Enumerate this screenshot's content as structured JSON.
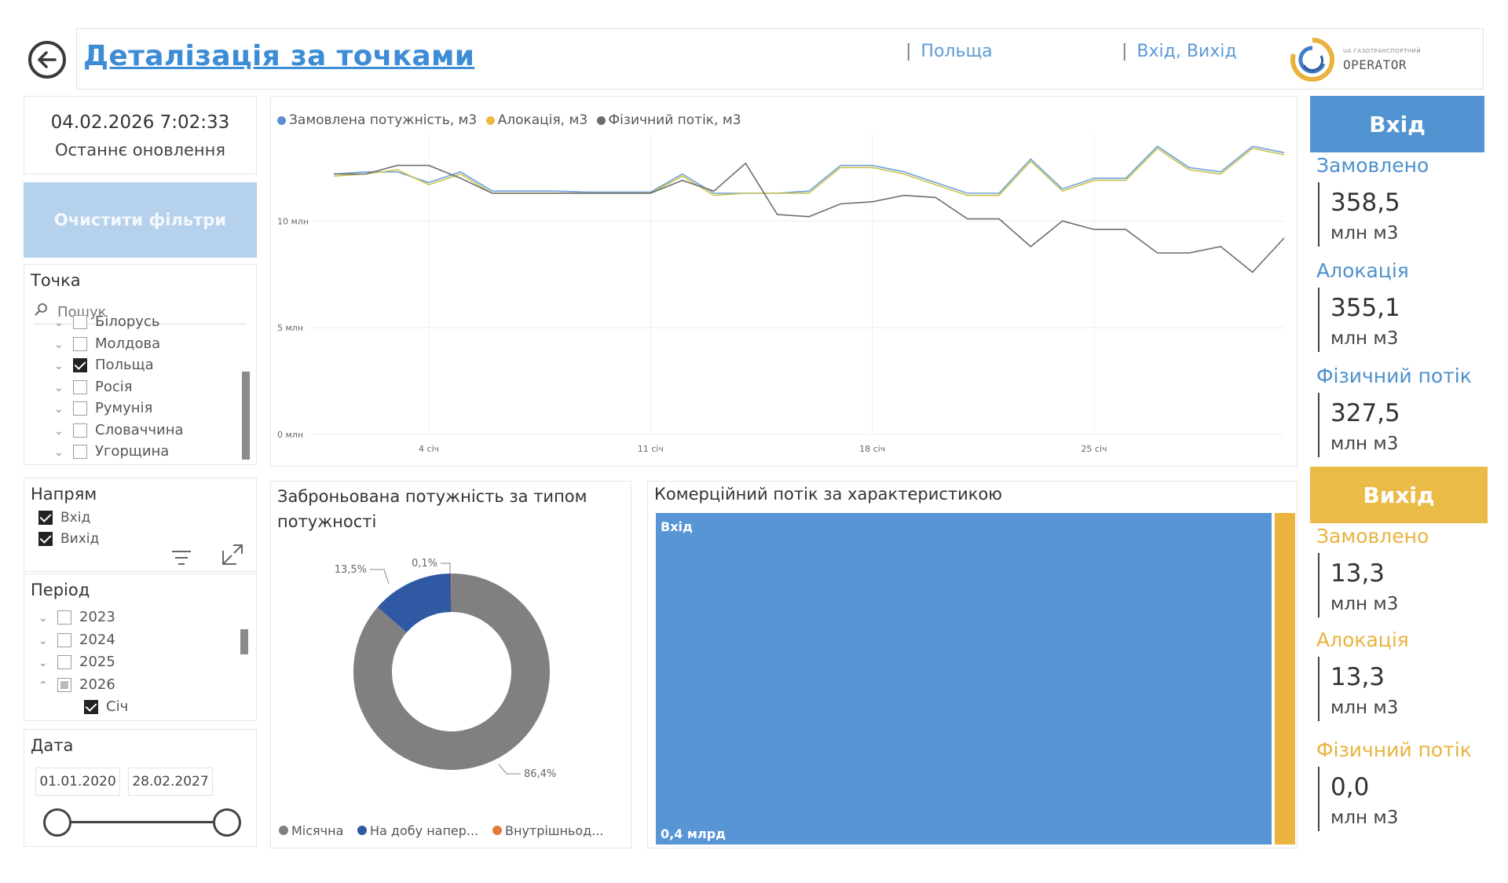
{
  "header": {
    "title": "Деталізація за точками",
    "filter_country": "Польща",
    "filter_direction": "Вхід, Вихід",
    "logo_text_small": "UA ГАЗОТРАНСПОРТНИЙ",
    "logo_text": "OPERATOR"
  },
  "refresh": {
    "datetime": "04.02.2026 7:02:33",
    "label": "Останнє оновлення"
  },
  "clear_filters_label": "Очистити фільтри",
  "tochka": {
    "title": "Точка",
    "search_placeholder": "Пошук",
    "items": [
      {
        "label": "Білорусь",
        "checked": false
      },
      {
        "label": "Молдова",
        "checked": false
      },
      {
        "label": "Польща",
        "checked": true
      },
      {
        "label": "Росія",
        "checked": false
      },
      {
        "label": "Румунія",
        "checked": false
      },
      {
        "label": "Словаччина",
        "checked": false
      },
      {
        "label": "Угорщина",
        "checked": false
      }
    ]
  },
  "napriam": {
    "title": "Напрям",
    "items": [
      {
        "label": "Вхід",
        "checked": true
      },
      {
        "label": "Вихід",
        "checked": true
      }
    ]
  },
  "period": {
    "title": "Період",
    "items": [
      {
        "label": "2023",
        "state": "unchecked",
        "expanded": false
      },
      {
        "label": "2024",
        "state": "unchecked",
        "expanded": false
      },
      {
        "label": "2025",
        "state": "unchecked",
        "expanded": false
      },
      {
        "label": "2026",
        "state": "partial",
        "expanded": true
      },
      {
        "label": "Січ",
        "state": "checked",
        "child": true
      }
    ]
  },
  "date_slicer": {
    "title": "Дата",
    "from": "01.01.2020",
    "to": "28.02.2027"
  },
  "line_chart": {
    "legend": [
      {
        "label": "Замовлена потужність, м3",
        "color": "#5b8fd0"
      },
      {
        "label": "Алокація, м3",
        "color": "#e8b93f"
      },
      {
        "label": "Фізичний потік, м3",
        "color": "#6b6b6b"
      }
    ]
  },
  "chart_data": [
    {
      "type": "line",
      "x_ticks": [
        "4 січ",
        "11 січ",
        "18 січ",
        "25 січ"
      ],
      "y_ticks": [
        "0 млн",
        "5 млн",
        "10 млн"
      ],
      "ylim": [
        0,
        14.5
      ],
      "x": [
        1,
        2,
        3,
        4,
        5,
        6,
        7,
        8,
        9,
        10,
        11,
        12,
        13,
        14,
        15,
        16,
        17,
        18,
        19,
        20,
        21,
        22,
        23,
        24,
        25,
        26,
        27,
        28,
        29,
        30,
        31
      ],
      "series": [
        {
          "name": "Замовлена потужність, м3",
          "color": "#6fa0d8",
          "values": [
            12.2,
            12.3,
            12.3,
            11.8,
            12.3,
            11.4,
            11.4,
            11.4,
            11.35,
            11.35,
            11.35,
            12.2,
            11.3,
            11.3,
            11.3,
            11.4,
            12.6,
            12.6,
            12.3,
            11.8,
            11.3,
            11.3,
            12.9,
            11.5,
            12.0,
            12.0,
            13.5,
            12.5,
            12.3,
            13.5,
            13.2
          ]
        },
        {
          "name": "Алокація, м3",
          "color": "#c9c24f",
          "values": [
            12.1,
            12.2,
            12.4,
            11.7,
            12.2,
            11.3,
            11.3,
            11.3,
            11.3,
            11.3,
            11.3,
            12.1,
            11.2,
            11.3,
            11.3,
            11.3,
            12.5,
            12.5,
            12.2,
            11.7,
            11.2,
            11.2,
            12.8,
            11.4,
            11.9,
            11.9,
            13.4,
            12.4,
            12.2,
            13.4,
            13.1
          ]
        },
        {
          "name": "Фізичний потік, м3",
          "color": "#6e6e6e",
          "values": [
            12.2,
            12.2,
            12.6,
            12.6,
            12.0,
            11.3,
            11.3,
            11.3,
            11.3,
            11.3,
            11.3,
            11.9,
            11.4,
            12.7,
            10.3,
            10.2,
            10.8,
            10.9,
            11.2,
            11.1,
            10.1,
            10.1,
            8.8,
            10.0,
            9.6,
            9.6,
            8.5,
            8.5,
            8.8,
            7.6,
            9.2
          ]
        }
      ]
    },
    {
      "type": "pie",
      "title": "Заброньована потужність за типом потужності",
      "categories": [
        "Місячна",
        "На добу напер...",
        "Внутрішньод..."
      ],
      "values": [
        86.4,
        13.5,
        0.1
      ],
      "labels": [
        "86,4%",
        "13,5%",
        "0,1%"
      ],
      "colors": [
        "#808080",
        "#2f5aa3",
        "#e07b39"
      ]
    },
    {
      "type": "heatmap",
      "title": "Комерційний потік за характеристикою",
      "categories": [
        "Вхід",
        "Вихід"
      ],
      "values": [
        0.4,
        0.013
      ],
      "value_label": "0,4 млрд",
      "colors": [
        "#5795d5",
        "#ebb33f"
      ]
    }
  ],
  "kpi": {
    "in": {
      "header": "Вхід",
      "ordered_label": "Замовлено",
      "ordered_value": "358,5",
      "alloc_label": "Алокація",
      "alloc_value": "355,1",
      "phys_label": "Фізичний потік",
      "phys_value": "327,5",
      "unit": "млн м3"
    },
    "out": {
      "header": "Вихід",
      "ordered_label": "Замовлено",
      "ordered_value": "13,3",
      "alloc_label": "Алокація",
      "alloc_value": "13,3",
      "phys_label": "Фізичний потік",
      "phys_value": "0,0",
      "unit": "млн м3"
    }
  }
}
